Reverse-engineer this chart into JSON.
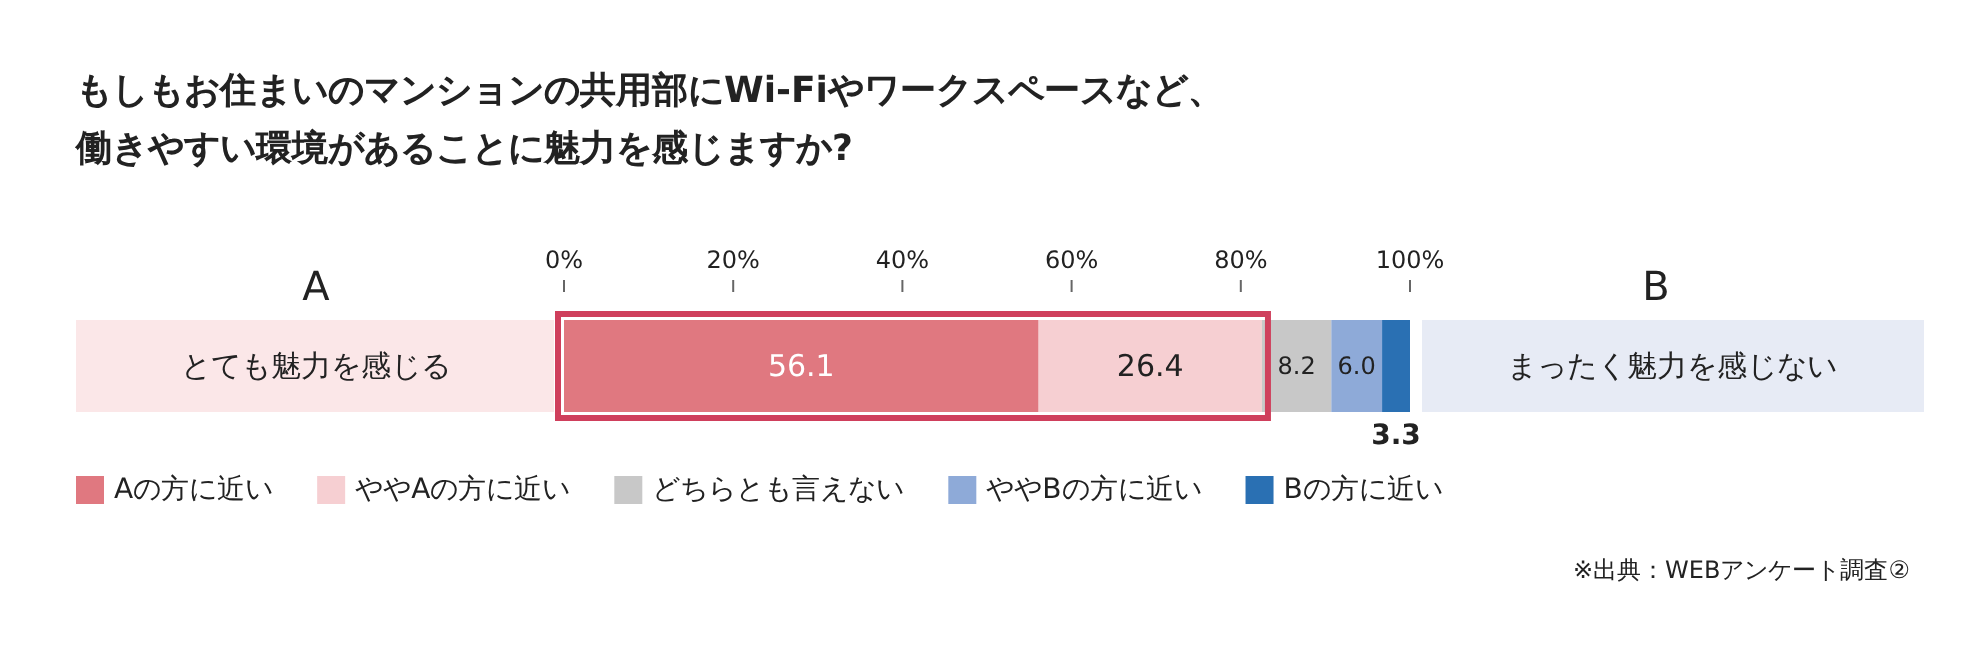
{
  "chart_data": {
    "type": "bar",
    "orientation": "horizontal",
    "stacked": true,
    "title": "もしもお住まいのマンションの共用部にWi-Fiやワークスペースなど、働きやすい環境があることに魅力を感じますか?",
    "categories": [
      null
    ],
    "xlim": [
      0,
      100
    ],
    "xticks": [
      {
        "value": 0,
        "label": "0%"
      },
      {
        "value": 20,
        "label": "20%"
      },
      {
        "value": 40,
        "label": "40%"
      },
      {
        "value": 60,
        "label": "60%"
      },
      {
        "value": 80,
        "label": "80%"
      },
      {
        "value": 100,
        "label": "100%"
      }
    ],
    "tick_labels": "x",
    "legend": "bottom",
    "series": [
      {
        "name": "Aの方に近い",
        "color": "#e07880",
        "values": [
          56.1
        ],
        "value_labels": [
          "56.1"
        ]
      },
      {
        "name": "ややAの方に近い",
        "color": "#f6cfd2",
        "values": [
          26.4
        ],
        "value_labels": [
          "26.4"
        ]
      },
      {
        "name": "どちらとも言えない",
        "color": "#c8c8c8",
        "values": [
          8.2
        ],
        "value_labels": [
          "8.2"
        ]
      },
      {
        "name": "ややBの方に近い",
        "color": "#8eaad8",
        "values": [
          6.0
        ],
        "value_labels": [
          "6.0"
        ]
      },
      {
        "name": "Bの方に近い",
        "color": "#2a70b3",
        "values": [
          3.3
        ],
        "value_labels": [
          "3.3"
        ]
      }
    ],
    "annotations": [
      "A",
      "とても魅力を感じる",
      "B",
      "まったく魅力を感じない",
      "※出典：WEBアンケート調査②"
    ]
  }
}
